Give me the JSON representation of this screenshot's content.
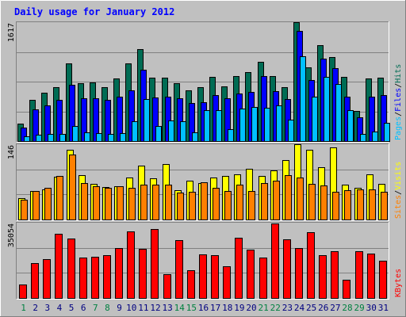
{
  "chart_data": {
    "type": "bar",
    "title": "Daily usage for January 2012",
    "categories": [
      "1",
      "2",
      "3",
      "4",
      "5",
      "6",
      "7",
      "8",
      "9",
      "10",
      "11",
      "12",
      "13",
      "14",
      "15",
      "16",
      "17",
      "18",
      "19",
      "20",
      "21",
      "22",
      "23",
      "24",
      "25",
      "26",
      "27",
      "28",
      "29",
      "30",
      "31"
    ],
    "weekend_days": [
      "1",
      "7",
      "8",
      "14",
      "15",
      "21",
      "22",
      "28",
      "29"
    ],
    "colors": {
      "title": "#0000ff",
      "weekday_label": "#000080",
      "weekend_label": "#008040",
      "hits": "#006c54",
      "files": "#0000ff",
      "pages": "#00c0ff",
      "visits": "#ffff00",
      "sites": "#ff8000",
      "kbytes": "#ff0000"
    },
    "panels": [
      {
        "id": "hits",
        "max_label": "1617",
        "ymax": 1617,
        "legend": [
          {
            "text": "Pages",
            "color": "#00c0ff"
          },
          {
            "text": "/",
            "color": "#000000"
          },
          {
            "text": "Files",
            "color": "#0000ff"
          },
          {
            "text": "/",
            "color": "#000000"
          },
          {
            "text": "Hits",
            "color": "#006c54"
          }
        ],
        "series": [
          {
            "name": "Hits",
            "color": "#006c54",
            "values": [
              240,
              564,
              658,
              728,
              1053,
              785,
              794,
              738,
              851,
              1053,
              1250,
              867,
              860,
              785,
              692,
              728,
              870,
              747,
              879,
              935,
              1080,
              888,
              728,
              1617,
              1000,
              1300,
              1138,
              870,
              410,
              851,
              860
            ]
          },
          {
            "name": "Files",
            "color": "#0000ff",
            "values": [
              180,
              430,
              490,
              560,
              760,
              585,
              580,
              560,
              600,
              690,
              970,
              590,
              600,
              580,
              520,
              530,
              630,
              580,
              650,
              670,
              880,
              680,
              570,
              1500,
              830,
              1120,
              990,
              600,
              320,
              600,
              620
            ]
          },
          {
            "name": "Pages",
            "color": "#00c0ff",
            "values": [
              70,
              90,
              100,
              100,
              210,
              120,
              110,
              100,
              110,
              270,
              570,
              210,
              280,
              270,
              120,
              420,
              420,
              160,
              440,
              460,
              450,
              490,
              290,
              1150,
              600,
              870,
              780,
              420,
              100,
              130,
              250
            ]
          }
        ]
      },
      {
        "id": "visits",
        "max_label": "146",
        "ymax": 146,
        "legend": [
          {
            "text": "Sites",
            "color": "#ff8000"
          },
          {
            "text": "/",
            "color": "#000000"
          },
          {
            "text": "Visits",
            "color": "#ffff00"
          }
        ],
        "series": [
          {
            "name": "Visits",
            "color": "#ffff00",
            "values": [
              42,
              55,
              59,
              83,
              135,
              86,
              69,
              63,
              65,
              81,
              104,
              80,
              108,
              57,
              76,
              70,
              81,
              84,
              88,
              98,
              84,
              96,
              115,
              146,
              135,
              101,
              140,
              67,
              62,
              87,
              69
            ]
          },
          {
            "name": "Sites",
            "color": "#ff8000",
            "values": [
              38,
              55,
              61,
              85,
              126,
              70,
              65,
              61,
              64,
              62,
              68,
              68,
              68,
              53,
              54,
              72,
              62,
              56,
              68,
              56,
              70,
              76,
              86,
              81,
              69,
              66,
              54,
              57,
              59,
              59,
              54
            ]
          }
        ]
      },
      {
        "id": "kbytes",
        "max_label": "35054",
        "ymax": 35054,
        "legend": [
          {
            "text": "KBytes",
            "color": "#ff0000"
          }
        ],
        "series": [
          {
            "name": "KBytes",
            "color": "#ff0000",
            "values": [
              6100,
              16100,
              18000,
              29800,
              27800,
              19000,
              19100,
              19800,
              23200,
              31100,
              23000,
              32200,
              11100,
              27000,
              12900,
              20400,
              19800,
              14700,
              28000,
              22400,
              18900,
              34800,
              27200,
              23400,
              30800,
              20000,
              21700,
              8600,
              21900,
              20700,
              17400
            ]
          }
        ]
      }
    ]
  }
}
